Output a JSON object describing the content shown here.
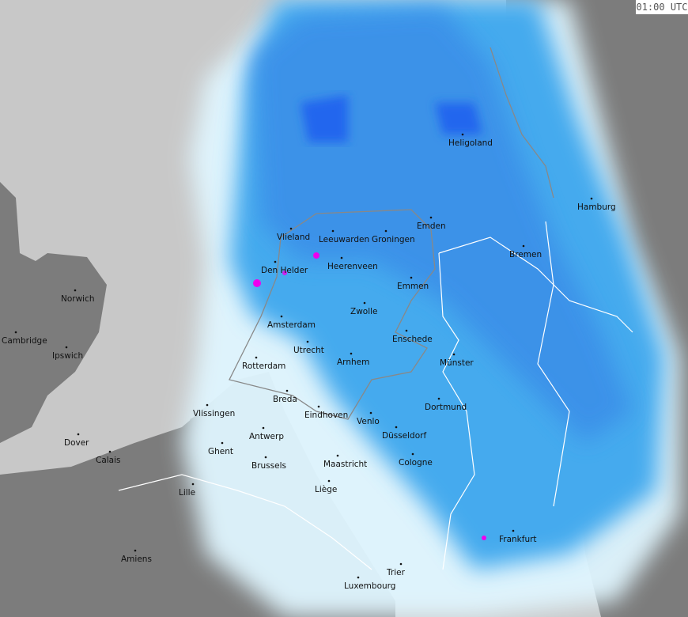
{
  "timestamp": "01:00 UTC",
  "colors": {
    "sea": "#c8c8c8",
    "land": "#7c7c7c",
    "light_rain": "#e0f6ff",
    "moderate_rain": "#33aaee",
    "heavy_rain": "#2266ee",
    "extreme": "#ee00ee",
    "borders": "#ffffff",
    "nl_outline": "#888888"
  },
  "cities": [
    "Heligoland",
    "Hamburg",
    "Emden",
    "Bremen",
    "Vlieland",
    "Leeuwarden",
    "Groningen",
    "Den Helder",
    "Heerenveen",
    "Emmen",
    "Norwich",
    "Zwolle",
    "Amsterdam",
    "Cambridge",
    "Enschede",
    "Ipswich",
    "Utrecht",
    "Rotterdam",
    "Arnhem",
    "Münster",
    "Breda",
    "Dortmund",
    "Vlissingen",
    "Eindhoven",
    "Venlo",
    "Düsseldorf",
    "Antwerp",
    "Dover",
    "Ghent",
    "Calais",
    "Brussels",
    "Maastricht",
    "Cologne",
    "Lille",
    "Liège",
    "Frankfurt",
    "Amiens",
    "Trier",
    "Luxembourg"
  ]
}
